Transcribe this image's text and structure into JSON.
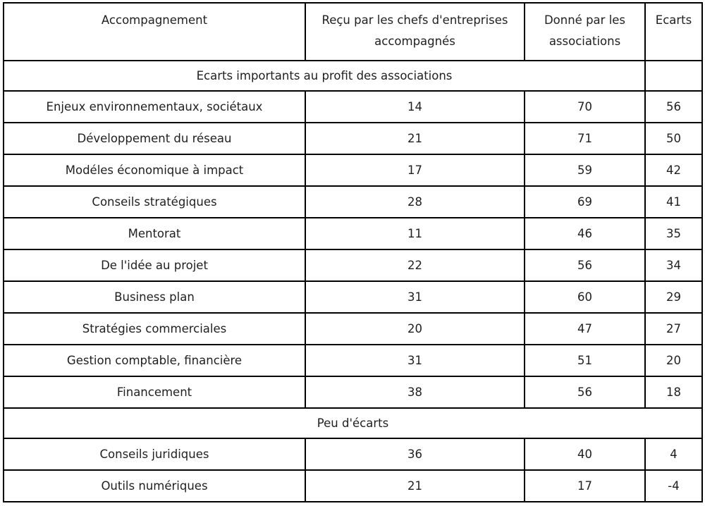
{
  "chart_data": {
    "type": "table",
    "columns": [
      "Accompagnement",
      "Reçu par les chefs d'entreprises accompagnés",
      "Donné par les associations",
      "Ecarts"
    ],
    "sections": [
      {
        "label": "Ecarts importants au profit des associations",
        "rows": [
          [
            "Enjeux environnementaux, sociétaux",
            14,
            70,
            56
          ],
          [
            "Développement du réseau",
            21,
            71,
            50
          ],
          [
            "Modéles économique à impact",
            17,
            59,
            42
          ],
          [
            "Conseils stratégiques",
            28,
            69,
            41
          ],
          [
            "Mentorat",
            11,
            46,
            35
          ],
          [
            "De l'idée au projet",
            22,
            56,
            34
          ],
          [
            "Business plan",
            31,
            60,
            29
          ],
          [
            "Stratégies commerciales",
            20,
            47,
            27
          ],
          [
            "Gestion comptable, financière",
            31,
            51,
            20
          ],
          [
            "Financement",
            38,
            56,
            18
          ]
        ]
      },
      {
        "label": "Peu d'écarts",
        "rows": [
          [
            "Conseils juridiques",
            36,
            40,
            4
          ],
          [
            "Outils numériques",
            21,
            17,
            -4
          ]
        ]
      }
    ],
    "layout": {
      "borders": "all",
      "border_color": "#000000",
      "text_color": "#1f1f1f",
      "background": "#ffffff"
    }
  }
}
